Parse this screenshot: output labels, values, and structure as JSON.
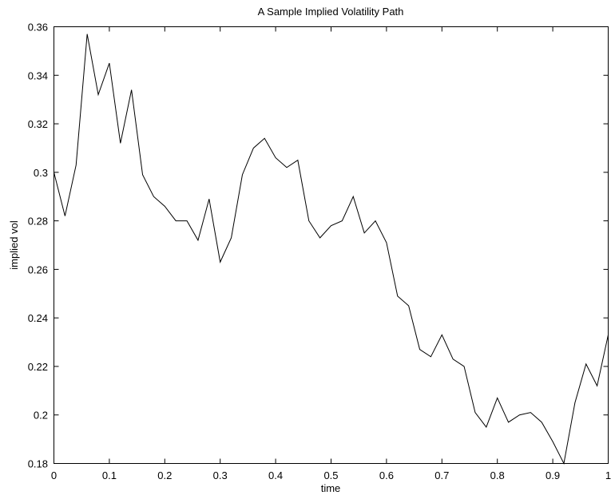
{
  "chart_data": {
    "type": "line",
    "title": "A Sample Implied Volatility Path",
    "xlabel": "time",
    "ylabel": "implied vol",
    "xlim": [
      0,
      1
    ],
    "ylim": [
      0.18,
      0.36
    ],
    "grid": false,
    "x_ticks": [
      0,
      0.1,
      0.2,
      0.3,
      0.4,
      0.5,
      0.6,
      0.7,
      0.8,
      0.9,
      1
    ],
    "x_tick_labels": [
      "0",
      "0.1",
      "0.2",
      "0.3",
      "0.4",
      "0.5",
      "0.6",
      "0.7",
      "0.8",
      "0.9",
      "1"
    ],
    "y_ticks": [
      0.18,
      0.2,
      0.22,
      0.24,
      0.26,
      0.28,
      0.3,
      0.32,
      0.34,
      0.36
    ],
    "y_tick_labels": [
      "0.18",
      "0.2",
      "0.22",
      "0.24",
      "0.26",
      "0.28",
      "0.3",
      "0.32",
      "0.34",
      "0.36"
    ],
    "series": [
      {
        "color": "#000000",
        "x": [
          0,
          0.02,
          0.04,
          0.06,
          0.08,
          0.1,
          0.12,
          0.14,
          0.16,
          0.18,
          0.2,
          0.22,
          0.24,
          0.26,
          0.28,
          0.3,
          0.32,
          0.34,
          0.36,
          0.38,
          0.4,
          0.42,
          0.44,
          0.46,
          0.48,
          0.5,
          0.52,
          0.54,
          0.56,
          0.58,
          0.6,
          0.62,
          0.64,
          0.66,
          0.68,
          0.7,
          0.72,
          0.74,
          0.76,
          0.78,
          0.8,
          0.82,
          0.84,
          0.86,
          0.88,
          0.9,
          0.92,
          0.94,
          0.96,
          0.98,
          1
        ],
        "y": [
          0.3,
          0.282,
          0.303,
          0.357,
          0.332,
          0.345,
          0.312,
          0.334,
          0.299,
          0.29,
          0.286,
          0.28,
          0.28,
          0.272,
          0.289,
          0.263,
          0.273,
          0.299,
          0.31,
          0.314,
          0.306,
          0.302,
          0.305,
          0.28,
          0.273,
          0.278,
          0.28,
          0.29,
          0.275,
          0.28,
          0.271,
          0.249,
          0.245,
          0.227,
          0.224,
          0.233,
          0.223,
          0.22,
          0.201,
          0.195,
          0.207,
          0.197,
          0.2,
          0.201,
          0.197,
          0.189,
          0.18,
          0.205,
          0.221,
          0.212,
          0.233
        ]
      }
    ]
  }
}
